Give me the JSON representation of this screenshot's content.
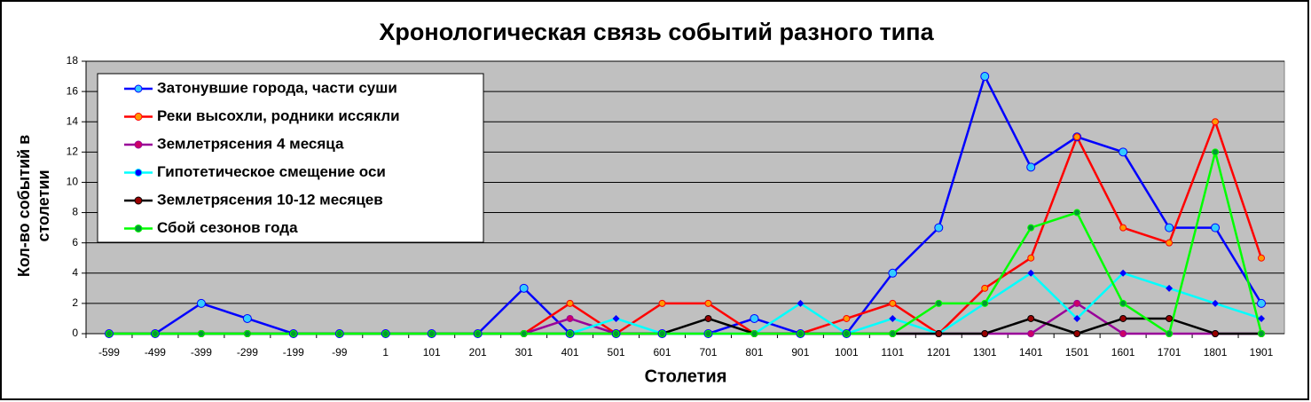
{
  "chart_data": {
    "type": "line",
    "title": "Хронологическая связь событий разного типа",
    "x_label": "Столетия",
    "y_label": "Кол-во событий в столетии",
    "categories": [
      "-599",
      "-499",
      "-399",
      "-299",
      "-199",
      "-99",
      "1",
      "101",
      "201",
      "301",
      "401",
      "501",
      "601",
      "701",
      "801",
      "901",
      "1001",
      "1101",
      "1201",
      "1301",
      "1401",
      "1501",
      "1601",
      "1701",
      "1801",
      "1901"
    ],
    "ylim": [
      0,
      18
    ],
    "yticks": [
      0,
      2,
      4,
      6,
      8,
      10,
      12,
      14,
      16,
      18
    ],
    "grid": true,
    "legend": "upper left",
    "series": [
      {
        "name": "Затонувшие города, части суши",
        "color": "#0000ff",
        "marker_color": "#33ccff",
        "values": [
          0,
          0,
          2,
          1,
          0,
          0,
          0,
          0,
          0,
          3,
          0,
          0,
          0,
          0,
          1,
          0,
          0,
          4,
          7,
          17,
          11,
          13,
          12,
          7,
          7,
          2
        ]
      },
      {
        "name": "Реки высохли, родники иссякли",
        "color": "#ff0000",
        "marker_color": "#ff9900",
        "values": [
          0,
          0,
          0,
          0,
          0,
          0,
          0,
          0,
          0,
          0,
          2,
          0,
          2,
          2,
          0,
          0,
          1,
          2,
          0,
          3,
          5,
          13,
          7,
          6,
          14,
          5
        ]
      },
      {
        "name": "Землетрясения 4 месяца",
        "color": "#990099",
        "marker_color": "#cc0066",
        "values": [
          0,
          0,
          0,
          0,
          0,
          0,
          0,
          0,
          0,
          0,
          1,
          0,
          0,
          0,
          0,
          0,
          0,
          0,
          0,
          0,
          0,
          2,
          0,
          0,
          0,
          0
        ]
      },
      {
        "name": "Гипотетическое смещение оси",
        "color": "#00ffff",
        "marker_color": "#0000ff",
        "values": [
          0,
          0,
          0,
          0,
          0,
          0,
          0,
          0,
          0,
          0,
          0,
          1,
          0,
          0,
          0,
          2,
          0,
          1,
          0,
          2,
          4,
          1,
          4,
          3,
          2,
          1
        ]
      },
      {
        "name": "Землетрясения 10-12 месяцев",
        "color": "#000000",
        "marker_color": "#990000",
        "values": [
          0,
          0,
          0,
          0,
          0,
          0,
          0,
          0,
          0,
          0,
          0,
          0,
          0,
          1,
          0,
          0,
          0,
          0,
          0,
          0,
          1,
          0,
          1,
          1,
          0,
          0
        ]
      },
      {
        "name": "Сбой сезонов года",
        "color": "#00ff00",
        "marker_color": "#009933",
        "values": [
          0,
          0,
          0,
          0,
          0,
          0,
          0,
          0,
          0,
          0,
          0,
          0,
          0,
          0,
          0,
          0,
          0,
          0,
          2,
          2,
          7,
          8,
          2,
          0,
          12,
          0
        ]
      }
    ]
  }
}
